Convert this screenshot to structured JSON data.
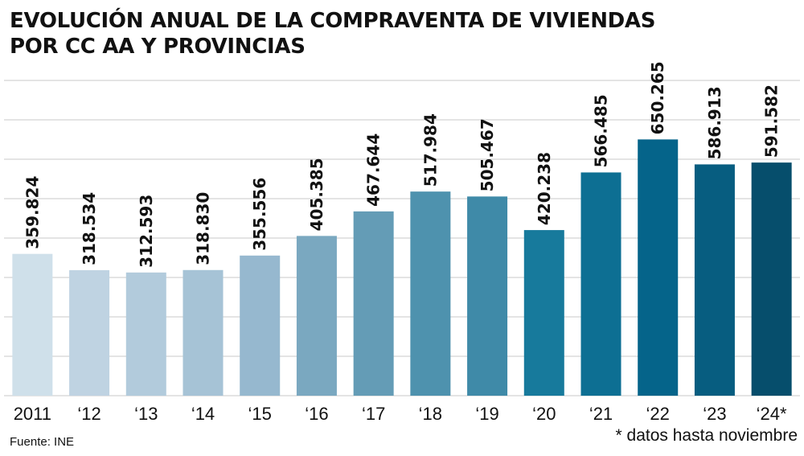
{
  "title_lines": [
    "EVOLUCIÓN ANUAL DE LA COMPRAVENTA DE VIVIENDAS",
    "POR CC AA Y PROVINCIAS"
  ],
  "source": "Fuente: INE",
  "footnote": "* datos hasta noviembre",
  "chart_data": {
    "type": "bar",
    "title": "EVOLUCIÓN ANUAL DE LA COMPRAVENTA DE VIVIENDAS POR CC AA Y PROVINCIAS",
    "categories": [
      "2011",
      "‘12",
      "‘13",
      "‘14",
      "‘15",
      "‘16",
      "‘17",
      "‘18",
      "‘19",
      "‘20",
      "‘21",
      "‘22",
      "‘23",
      "‘24*"
    ],
    "values": [
      359824,
      318534,
      312593,
      318830,
      355556,
      405385,
      467644,
      517984,
      505467,
      420238,
      566485,
      650265,
      586913,
      591582
    ],
    "value_labels": [
      "359.824",
      "318.534",
      "312.593",
      "318.830",
      "355.556",
      "405.385",
      "467.644",
      "517.984",
      "505.467",
      "420.238",
      "566.485",
      "650.265",
      "586.913",
      "591.582"
    ],
    "colors": [
      "#cfe0ea",
      "#bfd3e2",
      "#b2cbdc",
      "#a6c3d6",
      "#96b8cf",
      "#7aa8c0",
      "#649cb6",
      "#4e92ae",
      "#3f8aa8",
      "#177a9c",
      "#0d6f93",
      "#05648a",
      "#075d80",
      "#064e6c"
    ],
    "gridlines": [
      0,
      100000,
      200000,
      300000,
      400000,
      500000,
      600000,
      700000,
      800000
    ],
    "ylim": [
      0,
      800000
    ],
    "grid": true,
    "xlabel": "",
    "ylabel": ""
  }
}
